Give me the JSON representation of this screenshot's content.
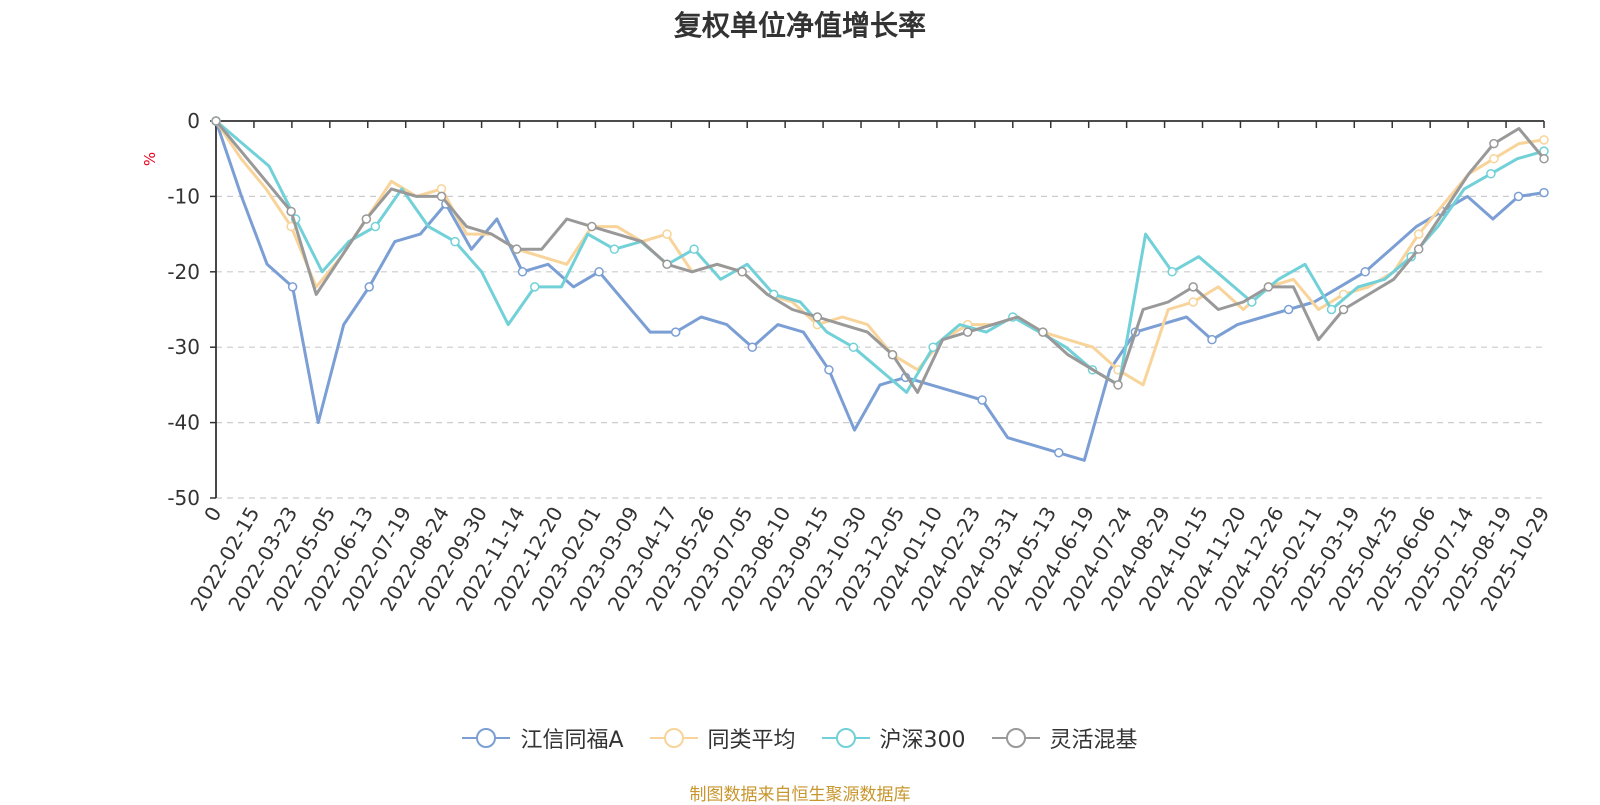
{
  "chart_data": {
    "type": "line",
    "title": "复权单位净值增长率",
    "unit_label": "%",
    "source_note": "制图数据来自恒生聚源数据库",
    "ylim": [
      -50,
      0
    ],
    "y_ticks": [
      "0",
      "-10",
      "-20",
      "-30",
      "-40",
      "-50"
    ],
    "y_tick_values": [
      0,
      -10,
      -20,
      -30,
      -40,
      -50
    ],
    "x_tick_labels": [
      "0",
      "2022-02-15",
      "2022-03-23",
      "2022-05-05",
      "2022-06-13",
      "2022-07-19",
      "2022-08-24",
      "2022-09-30",
      "2022-11-14",
      "2022-12-20",
      "2023-02-01",
      "2023-03-09",
      "2023-04-17",
      "2023-05-26",
      "2023-07-05",
      "2023-08-10",
      "2023-09-15",
      "2023-10-30",
      "2023-12-05",
      "2024-01-10",
      "2024-02-23",
      "2024-03-31",
      "2024-05-13",
      "2024-06-19",
      "2024-07-24",
      "2024-08-29",
      "2024-10-15",
      "2024-11-20",
      "2024-12-26",
      "2025-02-11",
      "2025-03-19",
      "2025-04-25",
      "2025-06-06",
      "2025-07-14",
      "2025-08-19",
      "2025-10-29"
    ],
    "x_tick_positions": [
      0,
      1,
      2,
      3,
      4,
      5,
      6,
      7,
      8,
      9,
      10,
      11,
      12,
      13,
      14,
      15,
      16,
      17,
      18,
      19,
      20,
      21,
      22,
      23,
      24,
      25,
      26,
      27,
      28,
      29,
      30,
      31,
      32,
      33,
      34,
      35
    ],
    "grid": true,
    "legend_position": "bottom",
    "series": [
      {
        "name": "江信同福A",
        "color": "#7b9fd4",
        "values": [
          0,
          -10,
          -19,
          -22,
          -40,
          -27,
          -22,
          -16,
          -15,
          -11,
          -17,
          -13,
          -20,
          -19,
          -22,
          -20,
          -24,
          -28,
          -28,
          -26,
          -27,
          -30,
          -27,
          -28,
          -33,
          -41,
          -35,
          -34,
          -35,
          -36,
          -37,
          -42,
          -43,
          -44,
          -45,
          -33,
          -28,
          -27,
          -26,
          -29,
          -27,
          -26,
          -25,
          -24,
          -22,
          -20,
          -17,
          -14,
          -12,
          -10,
          -13,
          -10,
          -9.5
        ]
      },
      {
        "name": "同类平均",
        "color": "#f8d49a",
        "values": [
          0,
          -5,
          -9,
          -14,
          -22,
          -18,
          -13,
          -8,
          -10,
          -9,
          -15,
          -15,
          -17,
          -18,
          -19,
          -14,
          -14,
          -16,
          -15,
          -20,
          -19,
          -20,
          -23,
          -24,
          -27,
          -26,
          -27,
          -31,
          -33,
          -29,
          -27,
          -27,
          -26,
          -28,
          -29,
          -30,
          -33,
          -35,
          -25,
          -24,
          -22,
          -25,
          -22,
          -21,
          -25,
          -23,
          -22,
          -20,
          -15,
          -11,
          -7,
          -5,
          -3,
          -2.5
        ]
      },
      {
        "name": "沪深300",
        "color": "#72d1d8",
        "values": [
          0,
          -3,
          -6,
          -13,
          -20,
          -16,
          -14,
          -9,
          -14,
          -16,
          -20,
          -27,
          -22,
          -22,
          -15,
          -17,
          -16,
          -19,
          -17,
          -21,
          -19,
          -23,
          -24,
          -28,
          -30,
          -33,
          -36,
          -30,
          -27,
          -28,
          -26,
          -28,
          -30,
          -33,
          -35,
          -15,
          -20,
          -18,
          -21,
          -24,
          -21,
          -19,
          -25,
          -22,
          -21,
          -18,
          -14,
          -9,
          -7,
          -5,
          -4
        ]
      },
      {
        "name": "灵活混基",
        "color": "#999999",
        "values": [
          0,
          -4,
          -8,
          -12,
          -23,
          -18,
          -13,
          -9,
          -10,
          -10,
          -14,
          -15,
          -17,
          -17,
          -13,
          -14,
          -15,
          -16,
          -19,
          -20,
          -19,
          -20,
          -23,
          -25,
          -26,
          -27,
          -28,
          -31,
          -36,
          -29,
          -28,
          -27,
          -26,
          -28,
          -31,
          -33,
          -35,
          -25,
          -24,
          -22,
          -25,
          -24,
          -22,
          -22,
          -29,
          -25,
          -23,
          -21,
          -17,
          -12,
          -7,
          -3,
          -1,
          -5
        ]
      }
    ]
  }
}
